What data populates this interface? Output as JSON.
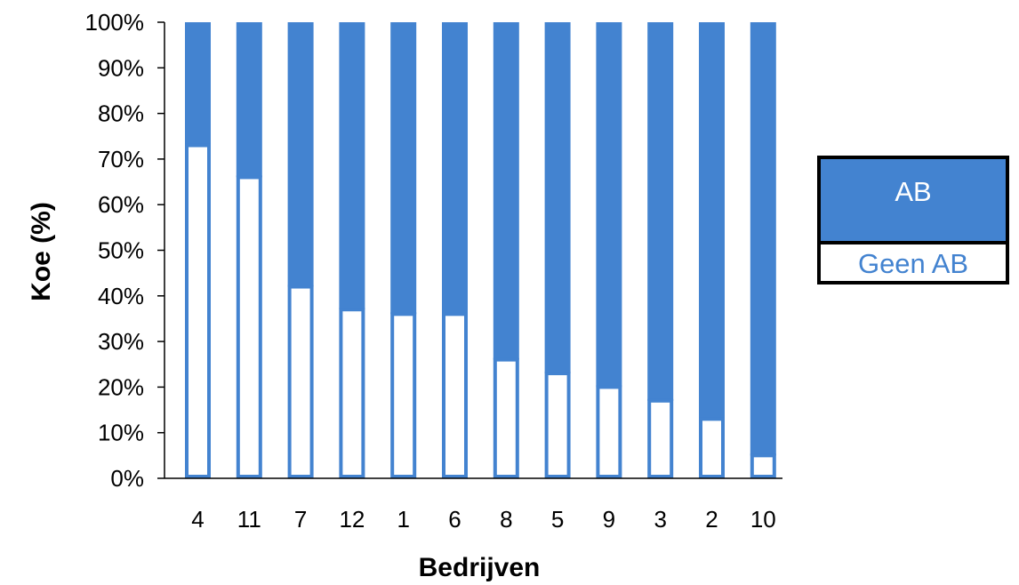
{
  "chart_data": {
    "type": "bar",
    "stacked": true,
    "percent_stacked": true,
    "categories": [
      "4",
      "11",
      "7",
      "12",
      "1",
      "6",
      "8",
      "5",
      "9",
      "3",
      "2",
      "10"
    ],
    "series": [
      {
        "name": "Geen AB",
        "values": [
          73,
          66,
          42,
          37,
          36,
          36,
          26,
          23,
          20,
          17,
          13,
          5
        ],
        "color": "#ffffff",
        "stroke": "#4383d0"
      },
      {
        "name": "AB",
        "values": [
          27,
          34,
          58,
          63,
          64,
          64,
          74,
          77,
          80,
          83,
          87,
          95
        ],
        "color": "#4383d0"
      }
    ],
    "xlabel": "Bedrijven",
    "ylabel": "Koe (%)",
    "ylim": [
      0,
      100
    ],
    "yticks": [
      "0%",
      "10%",
      "20%",
      "30%",
      "40%",
      "50%",
      "60%",
      "70%",
      "80%",
      "90%",
      "100%"
    ],
    "grid": false,
    "legend_position": "right"
  },
  "colors": {
    "accent": "#4383d0",
    "axis": "#000000",
    "legend_border": "#000000"
  }
}
